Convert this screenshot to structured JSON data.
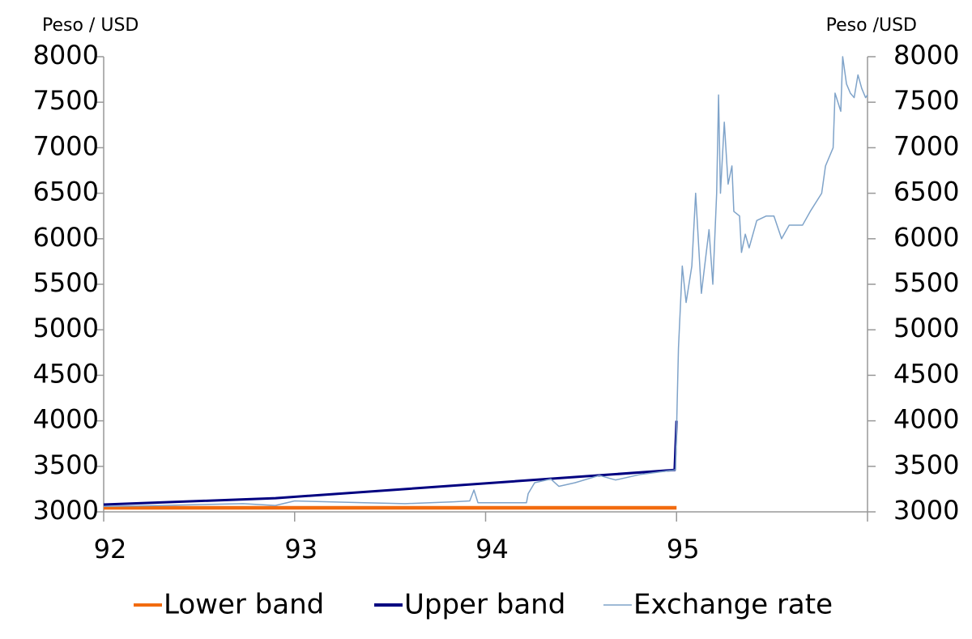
{
  "chart_data": {
    "type": "line",
    "y_label": "Peso / USD",
    "y2_label": "Peso /USD",
    "xlim": [
      92,
      96
    ],
    "xticks": [
      92,
      93,
      94,
      95
    ],
    "ylim": [
      3000,
      8000
    ],
    "yticks": [
      3000,
      3500,
      4000,
      4500,
      5000,
      5500,
      6000,
      6500,
      7000,
      7500,
      8000
    ],
    "y2lim": [
      3000,
      8000
    ],
    "y2ticks": [
      3000,
      3500,
      4000,
      4500,
      5000,
      5500,
      6000,
      6500,
      7000,
      7500,
      8000
    ],
    "legend": "bottom",
    "series": [
      {
        "name": "Lower band",
        "color": "#f26b0f",
        "x": [
          92.0,
          95.0
        ],
        "values": [
          3045,
          3045
        ]
      },
      {
        "name": "Upper band",
        "color": "#000080",
        "x": [
          92.0,
          92.9,
          94.99,
          95.0
        ],
        "values": [
          3080,
          3150,
          3460,
          4000
        ]
      },
      {
        "name": "Exchange rate",
        "color": "#7fa3c9",
        "x": [
          92.0,
          92.305,
          92.73,
          92.899,
          93.0,
          93.366,
          93.578,
          93.833,
          93.917,
          93.939,
          93.96,
          94.214,
          94.223,
          94.257,
          94.342,
          94.384,
          94.469,
          94.596,
          94.681,
          94.808,
          94.995,
          95.01,
          95.03,
          95.05,
          95.08,
          95.1,
          95.13,
          95.17,
          95.19,
          95.21,
          95.22,
          95.23,
          95.25,
          95.27,
          95.29,
          95.3,
          95.33,
          95.34,
          95.36,
          95.38,
          95.42,
          95.47,
          95.51,
          95.55,
          95.59,
          95.66,
          95.7,
          95.76,
          95.78,
          95.82,
          95.83,
          95.86,
          95.87,
          95.89,
          95.91,
          95.93,
          95.95,
          95.97,
          95.99,
          96.0
        ],
        "values": [
          3060,
          3070,
          3090,
          3070,
          3120,
          3100,
          3090,
          3110,
          3120,
          3240,
          3100,
          3100,
          3200,
          3320,
          3360,
          3280,
          3320,
          3400,
          3350,
          3410,
          3460,
          4800,
          5700,
          5300,
          5700,
          6500,
          5400,
          6100,
          5500,
          6500,
          7580,
          6500,
          7280,
          6600,
          6800,
          6300,
          6250,
          5850,
          6050,
          5900,
          6200,
          6250,
          6250,
          6000,
          6150,
          6150,
          6300,
          6500,
          6800,
          7000,
          7600,
          7400,
          8000,
          7700,
          7600,
          7550,
          7800,
          7650,
          7550,
          7580
        ]
      }
    ]
  }
}
